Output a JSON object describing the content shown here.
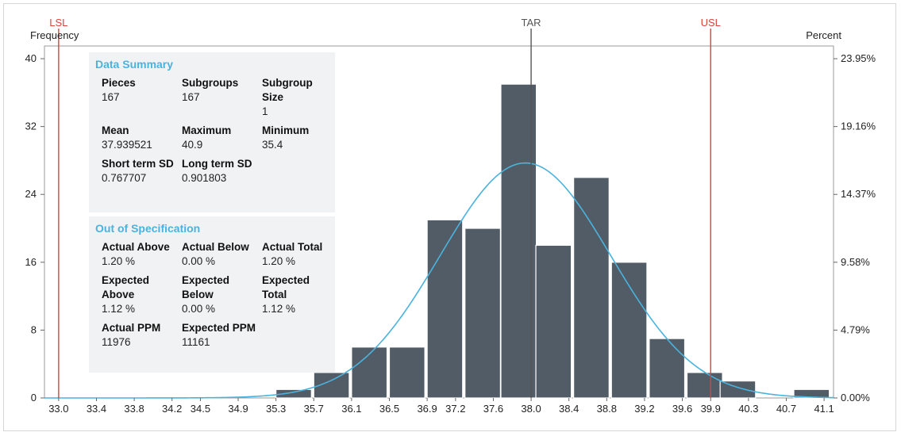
{
  "chart_data": {
    "type": "bar",
    "xlabel": "",
    "ylabel_left": "Frequency",
    "ylabel_right": "Percent",
    "y_ticks": [
      0,
      8,
      16,
      24,
      32,
      40
    ],
    "ylim": [
      0,
      41.5
    ],
    "percent_ticks": [
      "0.00%",
      "4.79%",
      "9.58%",
      "14.37%",
      "19.16%",
      "23.95%"
    ],
    "x_ticks": [
      "33.0",
      "33.4",
      "33.8",
      "34.2",
      "34.5",
      "34.9",
      "35.3",
      "35.7",
      "36.1",
      "36.5",
      "36.9",
      "37.2",
      "37.6",
      "38.0",
      "38.4",
      "38.8",
      "39.2",
      "39.6",
      "39.9",
      "40.3",
      "40.7",
      "41.1"
    ],
    "xlim": [
      32.85,
      41.2
    ],
    "bin_width": 0.375,
    "bins": [
      {
        "x0": 35.3,
        "value": 1
      },
      {
        "x0": 35.7,
        "value": 3
      },
      {
        "x0": 36.1,
        "value": 6
      },
      {
        "x0": 36.5,
        "value": 6
      },
      {
        "x0": 36.9,
        "value": 21
      },
      {
        "x0": 37.3,
        "value": 20
      },
      {
        "x0": 37.68,
        "value": 37
      },
      {
        "x0": 38.05,
        "value": 18
      },
      {
        "x0": 38.45,
        "value": 26
      },
      {
        "x0": 38.85,
        "value": 16
      },
      {
        "x0": 39.25,
        "value": 7
      },
      {
        "x0": 39.65,
        "value": 3
      },
      {
        "x0": 40.0,
        "value": 2
      },
      {
        "x0": 40.78,
        "value": 1
      }
    ],
    "bar_color": "#525c66",
    "normal_curve": {
      "mean": 37.939521,
      "sd": 0.901803,
      "n": 167,
      "bin_width": 0.375,
      "color": "#4ab3dd"
    },
    "spec_lines": [
      {
        "label": "LSL",
        "x": 33.0,
        "color": "#d9433a"
      },
      {
        "label": "TAR",
        "x": 38.0,
        "color": "#555555"
      },
      {
        "label": "USL",
        "x": 39.9,
        "color": "#d9433a"
      }
    ]
  },
  "summary": {
    "title": "Data Summary",
    "items": [
      {
        "label": "Pieces",
        "value": "167"
      },
      {
        "label": "Subgroups",
        "value": "167"
      },
      {
        "label": "Subgroup Size",
        "value": "1"
      },
      {
        "label": "Mean",
        "value": "37.939521"
      },
      {
        "label": "Maximum",
        "value": "40.9"
      },
      {
        "label": "Minimum",
        "value": "35.4"
      },
      {
        "label": "Short term SD",
        "value": "0.767707"
      },
      {
        "label": "Long term SD",
        "value": "0.901803"
      }
    ]
  },
  "oos": {
    "title": "Out of Specification",
    "items": [
      {
        "label": "Actual Above",
        "value": "1.20 %"
      },
      {
        "label": "Actual Below",
        "value": "0.00 %"
      },
      {
        "label": "Actual Total",
        "value": "1.20 %"
      },
      {
        "label": "Expected Above",
        "value": "1.12 %"
      },
      {
        "label": "Expected Below",
        "value": "0.00 %"
      },
      {
        "label": "Expected Total",
        "value": "1.12 %"
      },
      {
        "label": "Actual PPM",
        "value": "11976"
      },
      {
        "label": "Expected PPM",
        "value": "11161"
      }
    ]
  }
}
